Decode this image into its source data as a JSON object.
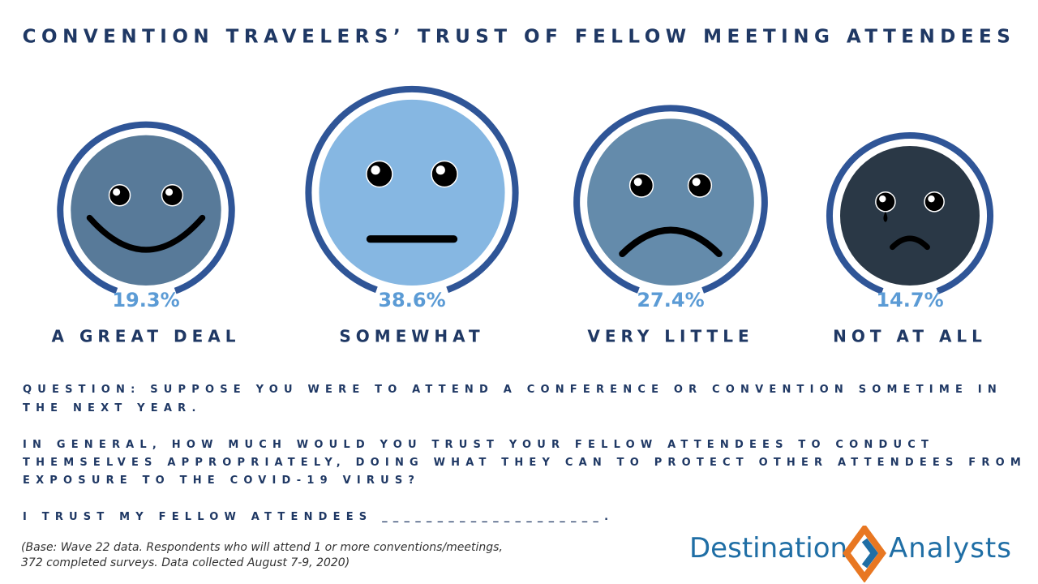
{
  "chart_data": {
    "type": "bubble",
    "title": "CONVENTION TRAVELERS’ TRUST OF FELLOW MEETING ATTENDEES",
    "categories": [
      "A GREAT DEAL",
      "SOMEWHAT",
      "VERY LITTLE",
      "NOT AT ALL"
    ],
    "values": [
      19.3,
      38.6,
      27.4,
      14.7
    ],
    "value_labels": [
      "19.3%",
      "38.6%",
      "27.4%",
      "14.7%"
    ],
    "colors": [
      "#587a99",
      "#86b7e2",
      "#648bab",
      "#2a3846"
    ],
    "ring_color": "#2f5597",
    "label_color": "#5b9bd5"
  },
  "question_lines": [
    "QUESTION: SUPPOSE YOU WERE TO ATTEND A CONFERENCE OR CONVENTION SOMETIME IN",
    "THE NEXT YEAR.",
    "IN GENERAL, HOW MUCH WOULD YOU TRUST YOUR FELLOW ATTENDEES TO CONDUCT",
    "THEMSELVES APPROPRIATELY, DOING WHAT THEY CAN TO PROTECT OTHER ATTENDEES FROM",
    "EXPOSURE TO THE COVID-19 VIRUS?",
    "I TRUST MY FELLOW ATTENDEES ____________________."
  ],
  "base_note": [
    "(Base: Wave 22 data. Respondents who will attend 1 or more conventions/meetings,",
    "372 completed surveys. Data collected August 7-9, 2020)"
  ],
  "logo": [
    "Destination",
    "Analysts"
  ]
}
